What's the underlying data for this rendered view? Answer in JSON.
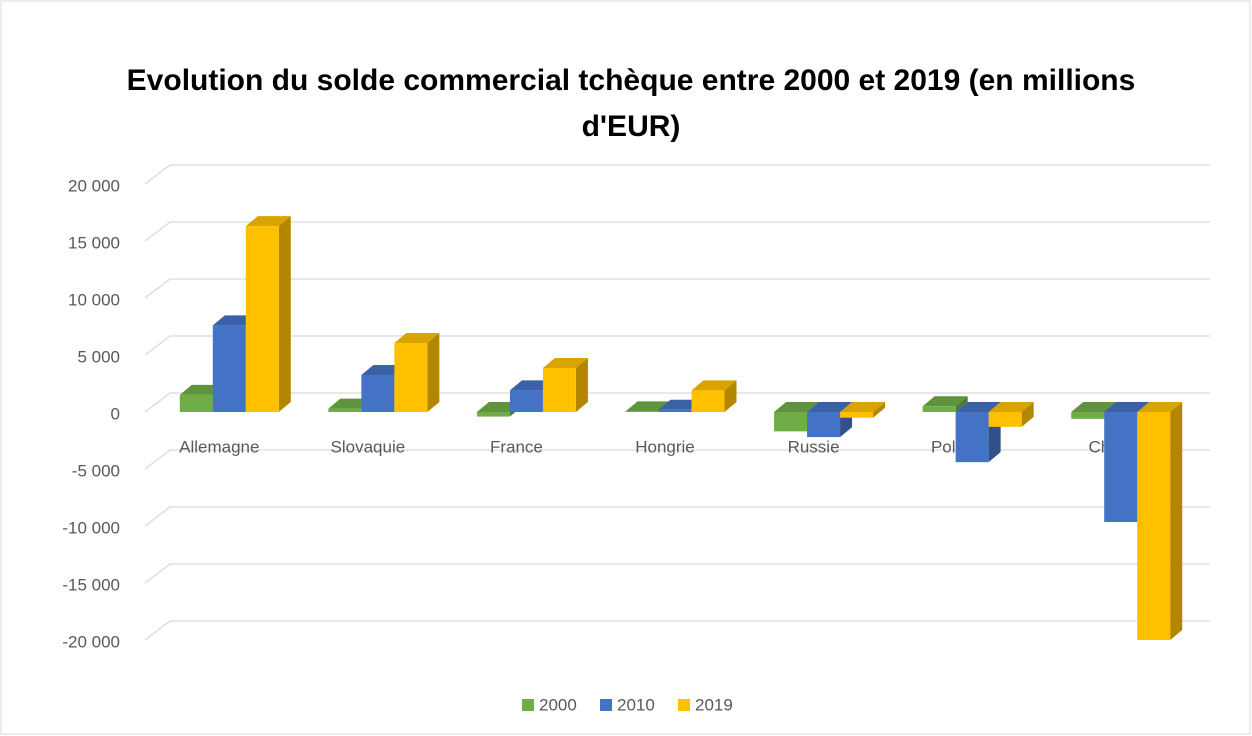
{
  "chart_data": {
    "type": "bar3d",
    "title": "Evolution du solde commercial tchèque entre 2000 et 2019 (en millions d'EUR)",
    "categories": [
      "Allemagne",
      "Slovaquie",
      "France",
      "Hongrie",
      "Russie",
      "Pologne",
      "Chine"
    ],
    "series": [
      {
        "name": "2000",
        "color": "#70ad47",
        "values": [
          1500,
          300,
          -400,
          50,
          -1700,
          500,
          -600
        ]
      },
      {
        "name": "2010",
        "color": "#4472c4",
        "values": [
          7600,
          3250,
          1900,
          200,
          -2200,
          -4400,
          -9650
        ]
      },
      {
        "name": "2019",
        "color": "#ffc000",
        "values": [
          16300,
          6050,
          3860,
          1900,
          -500,
          -1300,
          -20000
        ]
      }
    ],
    "ylim": [
      -20000,
      20000
    ],
    "yticks": [
      {
        "value": -20000,
        "label": "-20 000"
      },
      {
        "value": -15000,
        "label": "-15 000"
      },
      {
        "value": -10000,
        "label": "-10 000"
      },
      {
        "value": -5000,
        "label": "-5 000"
      },
      0,
      {
        "value": 5000,
        "label": "5 000"
      },
      {
        "value": 10000,
        "label": "10 000"
      },
      {
        "value": 15000,
        "label": "15 000"
      },
      {
        "value": 20000,
        "label": "20 000"
      }
    ],
    "grid": true,
    "legend": "bottom"
  }
}
